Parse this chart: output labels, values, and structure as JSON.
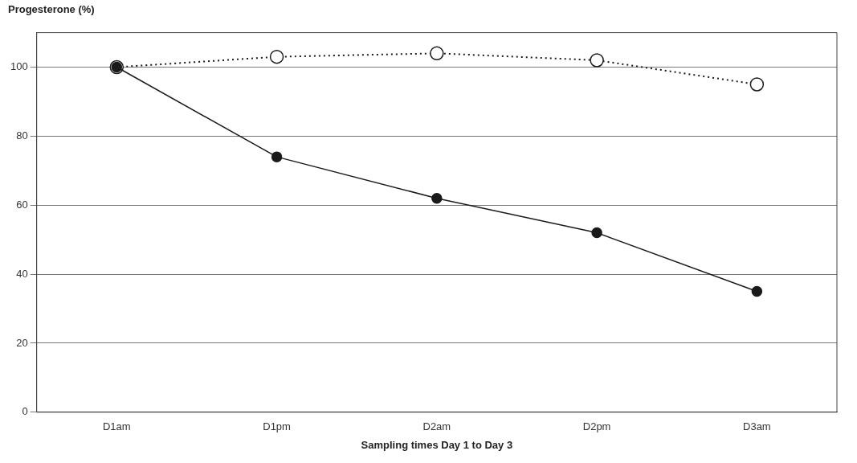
{
  "chart_data": {
    "type": "line",
    "xlabel": "Sampling times Day 1 to Day 3",
    "ylabel": "Progesterone (%)",
    "categories": [
      "D1am",
      "D1pm",
      "D2am",
      "D2pm",
      "D3am"
    ],
    "series": [
      {
        "color": "#1a1a1a",
        "values": [
          100,
          74,
          62,
          52,
          35
        ],
        "line_style": "solid"
      },
      {
        "color": "#1a1a1a",
        "values": [
          100,
          103,
          104,
          102,
          95
        ],
        "line_style": "dotted"
      }
    ],
    "ylim": [
      0,
      110
    ],
    "yticks": [
      0,
      20,
      40,
      60,
      80,
      100
    ],
    "grid": "y",
    "legend": false,
    "marker": "circle"
  }
}
